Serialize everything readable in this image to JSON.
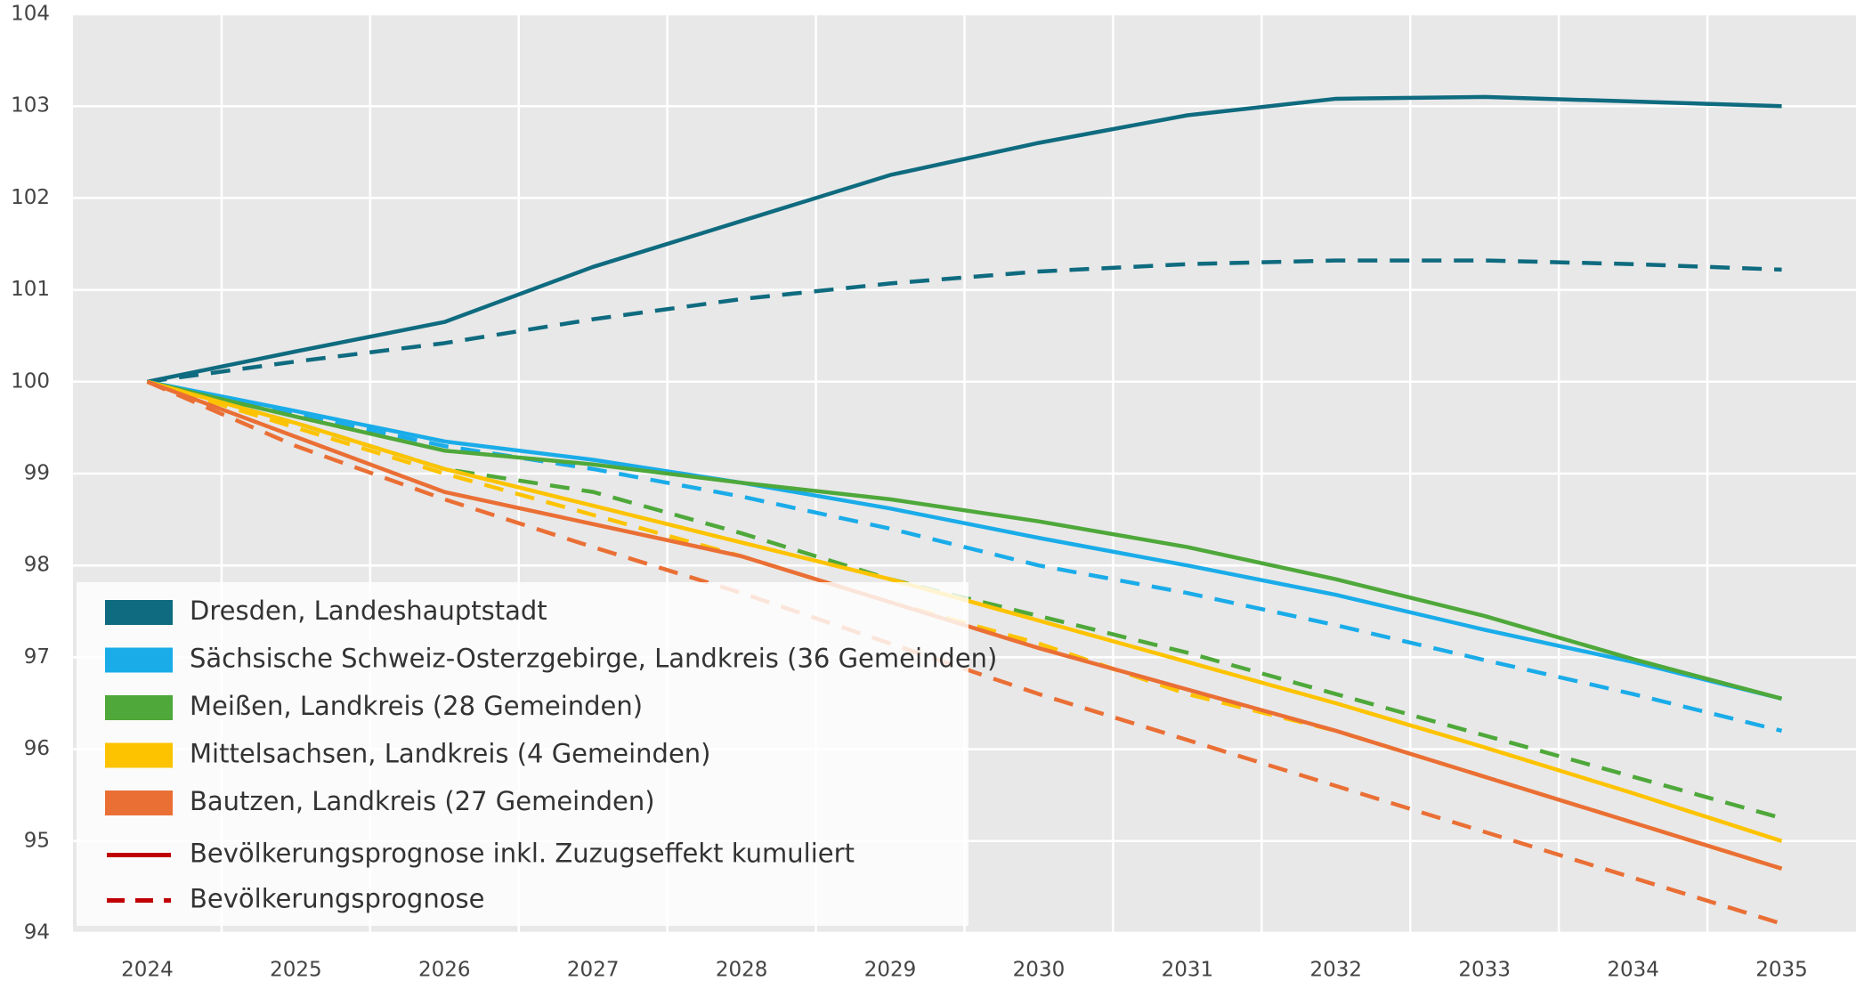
{
  "chart_data": {
    "type": "line",
    "categories": [
      "2024",
      "2025",
      "2026",
      "2027",
      "2028",
      "2029",
      "2030",
      "2031",
      "2032",
      "2033",
      "2034",
      "2035"
    ],
    "ylim": [
      94,
      104
    ],
    "yticks": [
      94,
      95,
      96,
      97,
      98,
      99,
      100,
      101,
      102,
      103,
      104
    ],
    "grid": true,
    "legend": "lower-left",
    "line_styles": [
      {
        "name": "Bevölkerungsprognose inkl. Zuzugseffekt kumuliert",
        "dash": "solid",
        "color": "#c00000"
      },
      {
        "name": "Bevölkerungsprognose",
        "dash": "dashed",
        "color": "#c00000"
      }
    ],
    "series": [
      {
        "name": "Dresden, Landeshauptstadt",
        "color": "#0f6b7f",
        "values": [
          [
            100,
            100.33,
            100.65,
            101.25,
            101.75,
            102.25,
            102.6,
            102.9,
            103.08,
            103.1,
            103.05,
            103.0
          ],
          [
            100,
            100.22,
            100.42,
            100.68,
            100.9,
            101.07,
            101.2,
            101.28,
            101.32,
            101.32,
            101.28,
            101.22
          ]
        ]
      },
      {
        "name": "Sächsische Schweiz-Osterzgebirge, Landkreis (36 Gemeinden)",
        "color": "#1aace9",
        "values": [
          [
            100,
            99.68,
            99.35,
            99.15,
            98.9,
            98.62,
            98.3,
            98.0,
            97.68,
            97.3,
            96.95,
            96.55
          ],
          [
            100,
            99.65,
            99.3,
            99.05,
            98.75,
            98.4,
            98.0,
            97.7,
            97.35,
            96.97,
            96.6,
            96.2
          ]
        ]
      },
      {
        "name": "Meißen, Landkreis (28 Gemeinden)",
        "color": "#4ea83a",
        "values": [
          [
            100,
            99.62,
            99.25,
            99.1,
            98.9,
            98.72,
            98.48,
            98.2,
            97.85,
            97.45,
            96.98,
            96.55
          ],
          [
            100,
            99.55,
            99.05,
            98.8,
            98.35,
            97.85,
            97.45,
            97.05,
            96.6,
            96.15,
            95.7,
            95.25
          ]
        ]
      },
      {
        "name": "Mittelsachsen, Landkreis (4 Gemeinden)",
        "color": "#fdc300",
        "values": [
          [
            100,
            99.55,
            99.05,
            98.65,
            98.25,
            97.85,
            97.4,
            96.95,
            96.5,
            96.02,
            95.52,
            95.0
          ],
          [
            100,
            99.5,
            99.0,
            98.55,
            98.1,
            97.6,
            97.15,
            96.6,
            96.2,
            95.7,
            95.2,
            94.7
          ]
        ]
      },
      {
        "name": "Bautzen, Landkreis (27 Gemeinden)",
        "color": "#ea6f35",
        "values": [
          [
            100,
            99.4,
            98.8,
            98.45,
            98.1,
            97.6,
            97.1,
            96.65,
            96.2,
            95.7,
            95.2,
            94.7
          ],
          [
            100,
            99.3,
            98.72,
            98.2,
            97.7,
            97.15,
            96.6,
            96.1,
            95.6,
            95.1,
            94.6,
            94.1
          ]
        ]
      }
    ]
  }
}
